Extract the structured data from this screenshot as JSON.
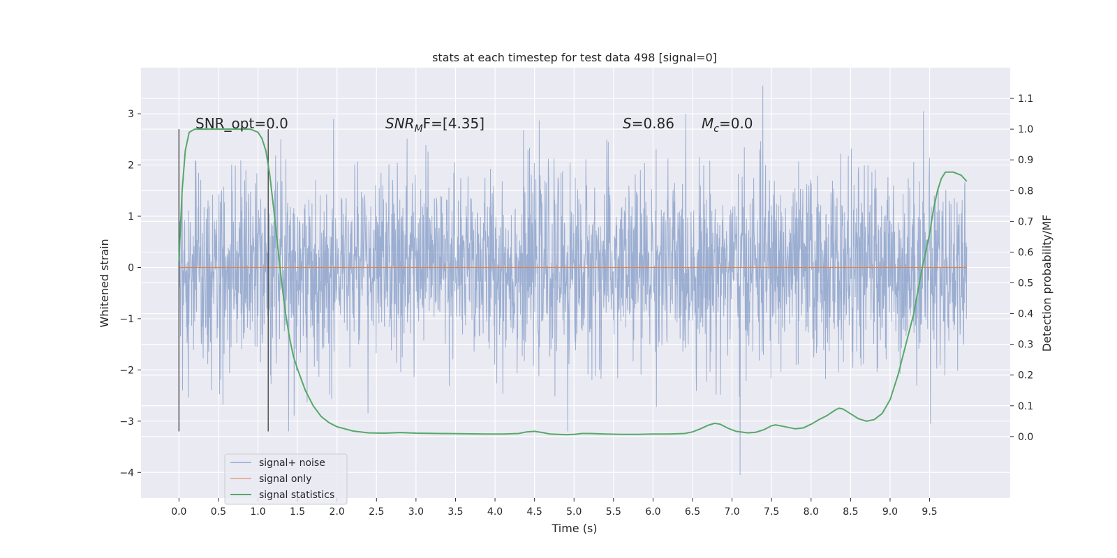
{
  "chart_data": {
    "type": "line",
    "title": "stats at each timestep for test data 498 [signal=0]",
    "xlabel": "Time (s)",
    "ylabel": "Whitened strain",
    "y2label": "Detection probability/MF",
    "xlim": [
      -0.48,
      10.52
    ],
    "ylim": [
      -4.5,
      3.9
    ],
    "y2lim": [
      -0.2,
      1.2
    ],
    "x_ticks": [
      0.0,
      0.5,
      1.0,
      1.5,
      2.0,
      2.5,
      3.0,
      3.5,
      4.0,
      4.5,
      5.0,
      5.5,
      6.0,
      6.5,
      7.0,
      7.5,
      8.0,
      8.5,
      9.0,
      9.5
    ],
    "x_tick_labels": [
      "0.0",
      "0.5",
      "1.0",
      "1.5",
      "2.0",
      "2.5",
      "3.0",
      "3.5",
      "4.0",
      "4.5",
      "5.0",
      "5.5",
      "6.0",
      "6.5",
      "7.0",
      "7.5",
      "8.0",
      "8.5",
      "9.0",
      "9.5"
    ],
    "y_ticks": [
      -4,
      -3,
      -2,
      -1,
      0,
      1,
      2,
      3
    ],
    "y_tick_labels": [
      "−4",
      "−3",
      "−2",
      "−1",
      "0",
      "1",
      "2",
      "3"
    ],
    "y2_ticks": [
      0.0,
      0.1,
      0.2,
      0.3,
      0.4,
      0.5,
      0.6,
      0.7,
      0.8,
      0.9,
      1.0,
      1.1
    ],
    "y2_tick_labels": [
      "0.0",
      "0.1",
      "0.2",
      "0.3",
      "0.4",
      "0.5",
      "0.6",
      "0.7",
      "0.8",
      "0.9",
      "1.0",
      "1.1"
    ],
    "grid": true,
    "legend_position": "lower-left",
    "annotations": {
      "snr_opt": "SNR_opt=0.0",
      "snr_mf_main": "SNR",
      "snr_mf_sub": "M",
      "snr_mf_rest": "F=[4.35]",
      "s_var": "S",
      "s_rest": "=0.86",
      "mc_main": "M",
      "mc_sub": "c",
      "mc_rest": "=0.0"
    },
    "vlines": [
      0.0,
      1.13
    ],
    "vline_range": [
      -3.2,
      2.7
    ],
    "noise": {
      "x_start": 0.0,
      "x_end": 9.97,
      "seed": 498,
      "sigma": 1.0,
      "spikes": [
        {
          "x": 7.39,
          "y": 3.55
        },
        {
          "x": 7.1,
          "y": -4.05
        },
        {
          "x": 4.92,
          "y": -3.2
        },
        {
          "x": 1.39,
          "y": -3.2
        },
        {
          "x": 9.51,
          "y": -3.05
        },
        {
          "x": 9.42,
          "y": 3.05
        }
      ]
    },
    "series": [
      {
        "name": "signal+ noise",
        "color": "#4c72b0",
        "kind": "noise"
      },
      {
        "name": "signal only",
        "color": "#dd8452",
        "kind": "flat",
        "x": [
          0.0,
          9.97
        ],
        "values": [
          0.0,
          0.0
        ]
      },
      {
        "name": "signal statistics",
        "color": "#55a868",
        "axis": "right",
        "x": [
          0.0,
          0.04,
          0.08,
          0.13,
          0.2,
          0.3,
          0.5,
          0.7,
          0.9,
          1.0,
          1.05,
          1.1,
          1.15,
          1.2,
          1.25,
          1.3,
          1.35,
          1.4,
          1.45,
          1.5,
          1.6,
          1.7,
          1.8,
          1.9,
          2.0,
          2.2,
          2.4,
          2.6,
          2.8,
          3.0,
          3.3,
          3.6,
          3.9,
          4.1,
          4.3,
          4.4,
          4.5,
          4.6,
          4.7,
          4.9,
          5.0,
          5.1,
          5.2,
          5.4,
          5.6,
          5.8,
          6.0,
          6.2,
          6.4,
          6.5,
          6.6,
          6.7,
          6.78,
          6.85,
          6.95,
          7.05,
          7.2,
          7.3,
          7.4,
          7.5,
          7.55,
          7.65,
          7.8,
          7.9,
          8.0,
          8.1,
          8.2,
          8.3,
          8.35,
          8.4,
          8.5,
          8.6,
          8.7,
          8.8,
          8.9,
          9.0,
          9.1,
          9.2,
          9.3,
          9.4,
          9.5,
          9.55,
          9.6,
          9.65,
          9.7,
          9.8,
          9.9,
          9.97
        ],
        "values": [
          0.57,
          0.8,
          0.93,
          0.99,
          1.0,
          1.0,
          1.0,
          1.0,
          1.0,
          0.99,
          0.97,
          0.93,
          0.85,
          0.74,
          0.62,
          0.5,
          0.4,
          0.32,
          0.26,
          0.22,
          0.15,
          0.1,
          0.065,
          0.045,
          0.032,
          0.018,
          0.012,
          0.011,
          0.013,
          0.011,
          0.01,
          0.009,
          0.008,
          0.008,
          0.01,
          0.015,
          0.017,
          0.013,
          0.008,
          0.006,
          0.007,
          0.01,
          0.01,
          0.008,
          0.007,
          0.007,
          0.008,
          0.008,
          0.01,
          0.015,
          0.025,
          0.037,
          0.043,
          0.04,
          0.027,
          0.017,
          0.012,
          0.014,
          0.022,
          0.035,
          0.038,
          0.033,
          0.025,
          0.028,
          0.04,
          0.055,
          0.068,
          0.085,
          0.092,
          0.09,
          0.074,
          0.058,
          0.05,
          0.055,
          0.075,
          0.12,
          0.2,
          0.3,
          0.4,
          0.54,
          0.66,
          0.74,
          0.8,
          0.84,
          0.86,
          0.86,
          0.85,
          0.83
        ]
      }
    ]
  }
}
